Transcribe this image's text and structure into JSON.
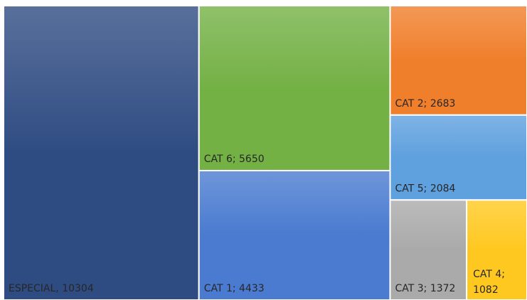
{
  "chart_data": {
    "type": "treemap",
    "values": [
      10304,
      5650,
      4433,
      2683,
      2084,
      1372,
      1082
    ],
    "value_labels": [
      "ESPECIAL, 10304",
      "CAT 6; 5650",
      "CAT 1; 4433",
      "CAT 2; 2683",
      "CAT 5; 2084",
      "CAT 3; 1372",
      "CAT 4; 1082"
    ],
    "colors": [
      "#2f4c82",
      "#74b145",
      "#4a7bd0",
      "#f07f2c",
      "#5fa0de",
      "#aaaaaa",
      "#ffc820"
    ]
  }
}
